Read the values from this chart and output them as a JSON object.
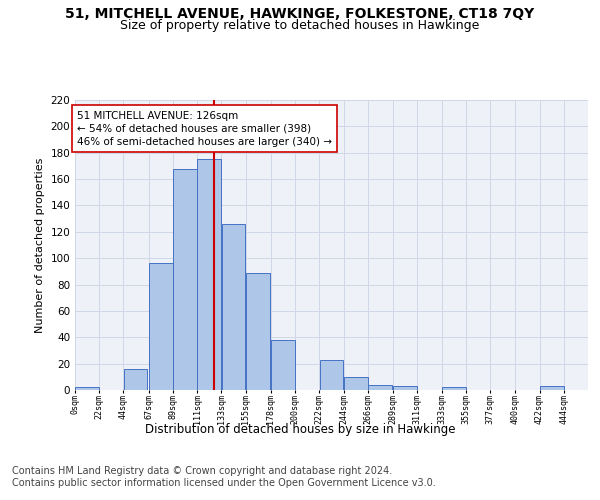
{
  "title": "51, MITCHELL AVENUE, HAWKINGE, FOLKESTONE, CT18 7QY",
  "subtitle": "Size of property relative to detached houses in Hawkinge",
  "xlabel": "Distribution of detached houses by size in Hawkinge",
  "ylabel": "Number of detached properties",
  "bar_left_edges": [
    0,
    22,
    44,
    67,
    89,
    111,
    133,
    155,
    178,
    200,
    222,
    244,
    266,
    289,
    311,
    333,
    355,
    377,
    400,
    422
  ],
  "bar_heights": [
    2,
    0,
    16,
    96,
    168,
    175,
    126,
    89,
    38,
    0,
    23,
    10,
    4,
    3,
    0,
    2,
    0,
    0,
    0,
    3
  ],
  "bin_width": 22,
  "bar_color": "#aec6e8",
  "bar_edge_color": "#4472c4",
  "property_value": 126,
  "vline_color": "#cc0000",
  "annotation_text": "51 MITCHELL AVENUE: 126sqm\n← 54% of detached houses are smaller (398)\n46% of semi-detached houses are larger (340) →",
  "annotation_bbox_color": "#ffffff",
  "annotation_bbox_edge": "#cc0000",
  "ylim": [
    0,
    220
  ],
  "yticks": [
    0,
    20,
    40,
    60,
    80,
    100,
    120,
    140,
    160,
    180,
    200,
    220
  ],
  "xtick_labels": [
    "0sqm",
    "22sqm",
    "44sqm",
    "67sqm",
    "89sqm",
    "111sqm",
    "133sqm",
    "155sqm",
    "178sqm",
    "200sqm",
    "222sqm",
    "244sqm",
    "266sqm",
    "289sqm",
    "311sqm",
    "333sqm",
    "355sqm",
    "377sqm",
    "400sqm",
    "422sqm",
    "444sqm"
  ],
  "grid_color": "#d0d8e8",
  "bg_color": "#eef2f8",
  "footer_line1": "Contains HM Land Registry data © Crown copyright and database right 2024.",
  "footer_line2": "Contains public sector information licensed under the Open Government Licence v3.0.",
  "title_fontsize": 10,
  "subtitle_fontsize": 9,
  "footer_fontsize": 7,
  "annotation_fontsize": 7.5,
  "ylabel_fontsize": 8,
  "xlabel_fontsize": 8.5,
  "ytick_fontsize": 7.5,
  "xtick_fontsize": 6
}
